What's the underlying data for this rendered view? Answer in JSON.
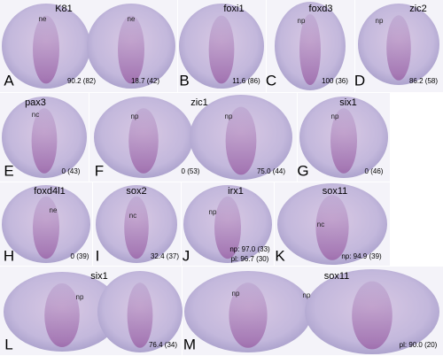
{
  "panels": [
    {
      "letter": "A",
      "title": "K81",
      "labels": [
        "ne",
        "ne"
      ],
      "stats": [
        "90.2 (82)",
        "18.7 (42)"
      ]
    },
    {
      "letter": "B",
      "title": "foxi1",
      "labels": [],
      "stats": [
        "11.6 (86)"
      ]
    },
    {
      "letter": "C",
      "title": "foxd3",
      "labels": [
        "np"
      ],
      "stats": [
        "100 (36)"
      ]
    },
    {
      "letter": "D",
      "title": "zic2",
      "labels": [
        "np"
      ],
      "stats": [
        "86.2 (58)"
      ]
    },
    {
      "letter": "E",
      "title": "pax3",
      "labels": [
        "nc"
      ],
      "stats": [
        "0 (43)"
      ]
    },
    {
      "letter": "F",
      "title": "zic1",
      "labels": [
        "np",
        "np"
      ],
      "stats": [
        "0 (53)",
        "75.0 (44)"
      ]
    },
    {
      "letter": "G",
      "title": "six1",
      "labels": [
        "np"
      ],
      "stats": [
        "0 (46)"
      ]
    },
    {
      "letter": "H",
      "title": "foxd4l1",
      "labels": [
        "ne"
      ],
      "stats": [
        "0 (39)"
      ]
    },
    {
      "letter": "I",
      "title": "sox2",
      "labels": [
        "nc"
      ],
      "stats": [
        "32.4 (37)"
      ]
    },
    {
      "letter": "J",
      "title": "irx1",
      "labels": [
        "np"
      ],
      "stats": [
        "np: 97.0 (33)",
        "pl: 96.7 (30)"
      ]
    },
    {
      "letter": "K",
      "title": "sox11",
      "labels": [
        "nc"
      ],
      "stats": [
        "np: 94.9 (39)"
      ]
    },
    {
      "letter": "L",
      "title": "six1",
      "labels": [
        "np"
      ],
      "stats": [
        "76.4 (34)"
      ]
    },
    {
      "letter": "M",
      "title": "sox11",
      "labels": [
        "np",
        "np"
      ],
      "stats": [
        "pl: 90.0 (20)"
      ]
    }
  ]
}
